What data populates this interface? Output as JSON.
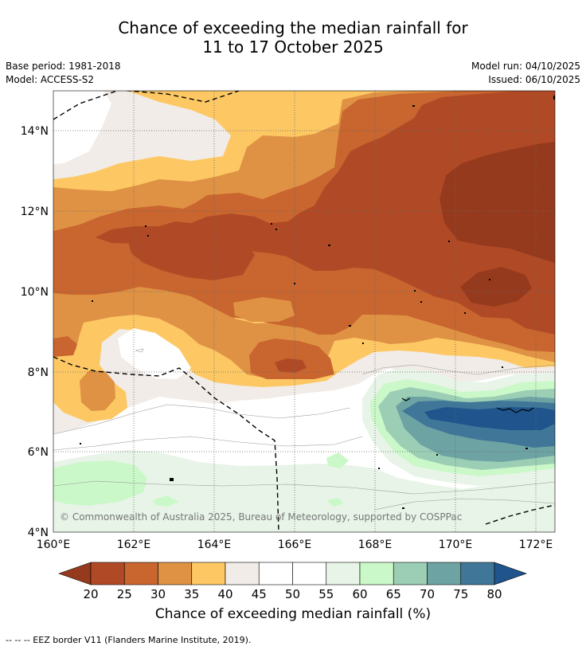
{
  "header": {
    "title_line1": "Chance of exceeding the median rainfall for",
    "title_line2": "11 to 17 October 2025",
    "base_period": "Base period: 1981-2018",
    "model": "Model: ACCESS-S2",
    "model_run": "Model run: 04/10/2025",
    "issued": "Issued: 06/10/2025"
  },
  "map": {
    "lon_labels": [
      "160°E",
      "162°E",
      "164°E",
      "166°E",
      "168°E",
      "170°E",
      "172°E"
    ],
    "lat_labels": [
      "14°N",
      "12°N",
      "10°N",
      "8°N",
      "6°N",
      "4°N"
    ],
    "copyright": "© Commonwealth of Australia 2025, Bureau of Meteorology, supported by COSPPac"
  },
  "colorbar": {
    "labels": [
      "20",
      "25",
      "30",
      "35",
      "40",
      "45",
      "50",
      "55",
      "60",
      "65",
      "70",
      "75",
      "80"
    ],
    "colors": [
      "#b04a26",
      "#c9652f",
      "#df9244",
      "#fdc864",
      "#f1ece7",
      "#ffffff",
      "#ffffff",
      "#e8f4e8",
      "#cbf8c8",
      "#9bceb5",
      "#6ea3a3",
      "#407799"
    ],
    "under_color": "#963a1d",
    "over_color": "#1f558c",
    "title": "Chance of exceeding median rainfall (%)"
  },
  "footer": {
    "legend_text": "--  --  -- EEZ border V11 (Flanders Marine Institute, 2019)."
  }
}
